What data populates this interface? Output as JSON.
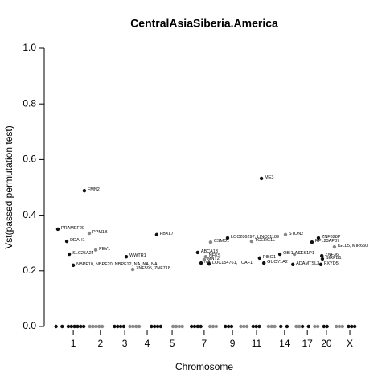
{
  "chart_data": {
    "type": "scatter",
    "title": "CentralAsiaSiberia.America",
    "xlabel": "Chromosome",
    "ylabel": "Vst(passed permutation test)",
    "xlim": [
      0,
      100
    ],
    "ylim": [
      0,
      1
    ],
    "xticks": [
      {
        "value": 7.6,
        "label": "1"
      },
      {
        "value": 16.4,
        "label": "2"
      },
      {
        "value": 24.3,
        "label": "3"
      },
      {
        "value": 31.6,
        "label": "4"
      },
      {
        "value": 39.7,
        "label": "5"
      },
      {
        "value": 50.1,
        "label": "7"
      },
      {
        "value": 59.3,
        "label": "9"
      },
      {
        "value": 67.1,
        "label": "11"
      },
      {
        "value": 76.2,
        "label": "14"
      },
      {
        "value": 83.6,
        "label": "17"
      },
      {
        "value": 89.8,
        "label": "20"
      },
      {
        "value": 97.4,
        "label": "X"
      }
    ],
    "yticks": [
      {
        "value": 0,
        "label": "0.0"
      },
      0.2,
      0.4,
      0.6,
      0.8,
      {
        "value": 1,
        "label": "1.0"
      }
    ],
    "series": [
      {
        "color": "#111111",
        "x": [
          2.6,
          11.2,
          5.5,
          6.3,
          7.6,
          24.8,
          34.7,
          48.0,
          49.1,
          51.7,
          57.7,
          68.7,
          68.1,
          69.5,
          74.7,
          78.9,
          87.2,
          85.1,
          88.3,
          88.5,
          88.0,
          2,
          4,
          6,
          7,
          8,
          9,
          10,
          11,
          21,
          22,
          23,
          24,
          33,
          34,
          35,
          36,
          46,
          47,
          48,
          49,
          57,
          58,
          59,
          66,
          67,
          68,
          75,
          77,
          82,
          84,
          89,
          90,
          97,
          98,
          99
        ],
        "values": [
          0.35,
          0.488,
          0.306,
          0.26,
          0.22,
          0.251,
          0.33,
          0.266,
          0.228,
          0.225,
          0.318,
          0.532,
          0.246,
          0.228,
          0.26,
          0.223,
          0.318,
          0.303,
          0.254,
          0.243,
          0.223,
          0,
          0,
          0,
          0,
          0,
          0,
          0,
          0,
          0,
          0,
          0,
          0,
          0,
          0,
          0,
          0,
          0,
          0,
          0,
          0,
          0,
          0,
          0,
          0,
          0,
          0,
          0,
          0,
          0,
          0,
          0,
          0,
          0,
          0,
          0
        ],
        "labels": [
          "PRAMEF20",
          "FMN2",
          "DDAH1",
          "SLC25A24",
          "NBPF10, NBPF20, NBPF12, NA, NA, NA",
          "WWTR1",
          "FBXL7",
          "ABCA13",
          "NA",
          "LOC154761, TCAF1",
          "LOC286297, LINC01189",
          "ME3",
          "PIBO1",
          "GUCY1A2",
          "OBI1-AS1",
          "ADAMTSL3",
          "ZNF828P",
          "RPL23AP87",
          "ZNF36",
          "SIRPB1",
          "FXYD5",
          null,
          null,
          null,
          null,
          null,
          null,
          null,
          null,
          null,
          null,
          null,
          null,
          null,
          null,
          null,
          null,
          null,
          null,
          null,
          null,
          null,
          null,
          null,
          null,
          null,
          null,
          null,
          null,
          null,
          null,
          null,
          null,
          null,
          null,
          null
        ]
      },
      {
        "color": "#888888",
        "x": [
          12.8,
          14.9,
          26.9,
          52.2,
          50.6,
          50.1,
          65.5,
          76.5,
          79.4,
          92.4,
          13,
          14,
          15,
          16,
          17,
          26,
          27,
          28,
          29,
          40,
          41,
          42,
          43,
          52,
          53,
          54,
          62,
          63,
          64,
          71,
          72,
          73,
          80,
          81,
          86,
          87,
          93,
          94,
          95
        ],
        "values": [
          0.335,
          0.275,
          0.205,
          0.303,
          0.251,
          0.24,
          0.306,
          0.33,
          0.26,
          0.286,
          0,
          0,
          0,
          0,
          0,
          0,
          0,
          0,
          0,
          0,
          0,
          0,
          0,
          0,
          0,
          0,
          0,
          0,
          0,
          0,
          0,
          0,
          0,
          0,
          0,
          0,
          0,
          0,
          0
        ],
        "labels": [
          "PPM1B",
          "PEV1",
          "ZNF595, ZNF718",
          "CSMD1",
          "NFKS",
          "MNT2",
          "TCERG1L",
          "STON2",
          "EES1P1",
          "IGLL5, MIR650",
          null,
          null,
          null,
          null,
          null,
          null,
          null,
          null,
          null,
          null,
          null,
          null,
          null,
          null,
          null,
          null,
          null,
          null,
          null,
          null,
          null,
          null,
          null,
          null,
          null,
          null,
          null,
          null,
          null
        ]
      }
    ]
  }
}
